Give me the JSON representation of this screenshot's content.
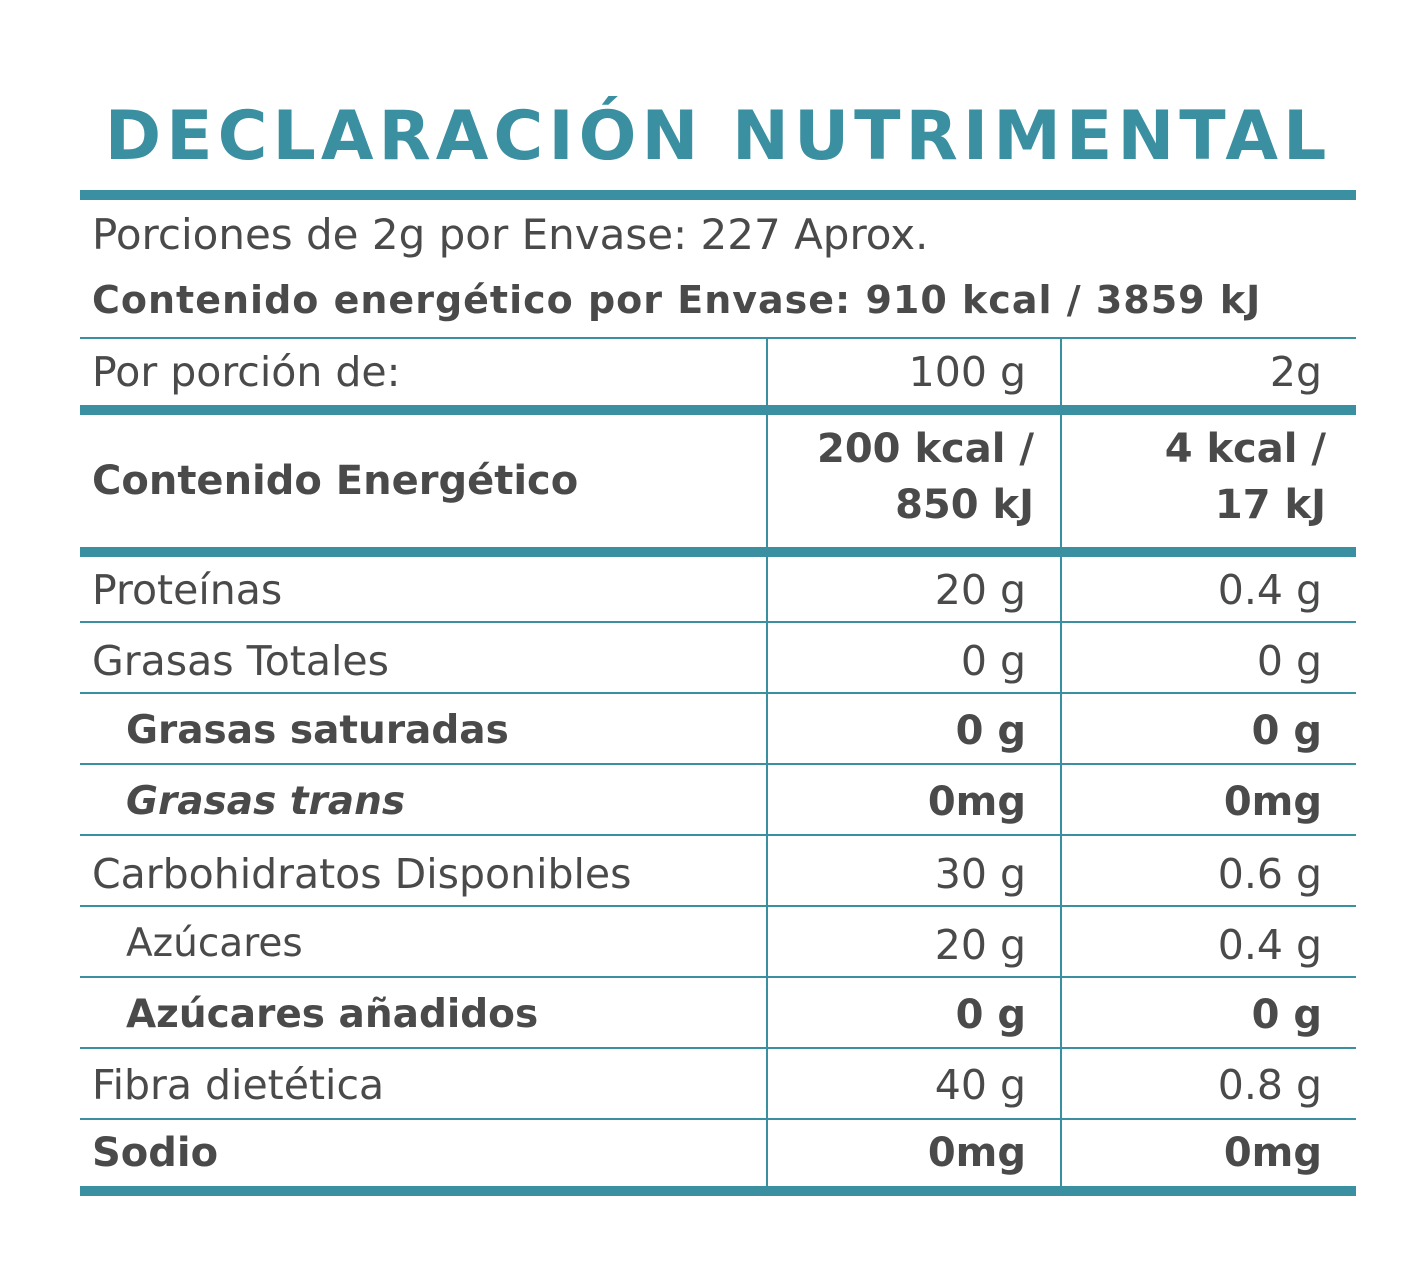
{
  "title": "DECLARACIÓN NUTRIMENTAL",
  "servings_line": "Porciones de 2g por Envase: 227 Aprox.",
  "energy_per_package": "Contenido energético por Envase: 910 kcal / 3859 kJ",
  "colors": {
    "accent": "#3a8fa0",
    "text": "#4a4a4a"
  },
  "table": {
    "header": {
      "label": "Por porción de:",
      "col1": "100 g",
      "col2": "2g"
    },
    "energy": {
      "label": "Contenido Energético",
      "col1_line1": "200 kcal /",
      "col1_line2": "850 kJ",
      "col2_line1": "4 kcal /",
      "col2_line2": "17 kJ"
    },
    "rows": [
      {
        "label": "Proteínas",
        "col1": "20 g",
        "col2": "0.4 g"
      },
      {
        "label": "Grasas Totales",
        "col1": "0 g",
        "col2": "0 g"
      },
      {
        "label": "Grasas saturadas",
        "col1": "0 g",
        "col2": "0 g"
      },
      {
        "label": "Grasas trans",
        "col1": "0mg",
        "col2": "0mg"
      },
      {
        "label": "Carbohidratos Disponibles",
        "col1": "30 g",
        "col2": "0.6 g"
      },
      {
        "label": "Azúcares",
        "col1": "20 g",
        "col2": "0.4 g"
      },
      {
        "label": "Azúcares añadidos",
        "col1": "0 g",
        "col2": "0 g"
      },
      {
        "label": "Fibra dietética",
        "col1": "40 g",
        "col2": "0.8 g"
      },
      {
        "label": "Sodio",
        "col1": "0mg",
        "col2": "0mg"
      }
    ]
  }
}
